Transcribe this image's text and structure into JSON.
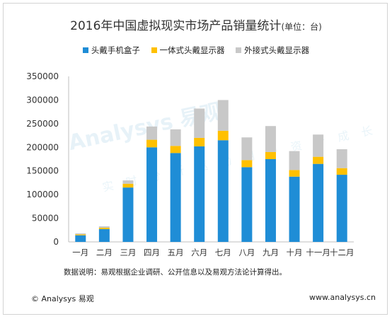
{
  "chart_data": {
    "type": "bar",
    "stacked": true,
    "title": "2016年中国虚拟现实市场产品销量统计",
    "title_unit": "(单位：台)",
    "categories": [
      "一月",
      "二月",
      "三月",
      "四月",
      "五月",
      "六月",
      "七月",
      "八月",
      "九月",
      "十月",
      "十一月",
      "十二月"
    ],
    "series": [
      {
        "name": "头戴手机盒子",
        "color": "#1f8dd6",
        "values": [
          14000,
          27000,
          115000,
          200000,
          188000,
          202000,
          215000,
          158000,
          175000,
          138000,
          165000,
          142000
        ]
      },
      {
        "name": "一体式头戴显示器",
        "color": "#ffc000",
        "values": [
          2000,
          3000,
          8000,
          16000,
          15000,
          18000,
          20000,
          15000,
          15000,
          14000,
          15000,
          14000
        ]
      },
      {
        "name": "外接式头戴显示器",
        "color": "#c8c8c8",
        "values": [
          2000,
          3000,
          7000,
          28000,
          35000,
          62000,
          65000,
          48000,
          55000,
          40000,
          47000,
          40000
        ]
      }
    ],
    "yticks": [
      0,
      50000,
      100000,
      150000,
      200000,
      250000,
      300000,
      350000
    ],
    "ylim": [
      0,
      350000
    ],
    "grid": false,
    "legend_position": "top"
  },
  "note": "数据说明：易观根据企业调研、公开信息以及易观方法论计算得出。",
  "footer": {
    "left": "© Analysys 易观",
    "right": "www.analysys.cn"
  },
  "watermark": {
    "brand": "Analysys 易观",
    "slogan": "实时分析驱动用户资产成长"
  }
}
